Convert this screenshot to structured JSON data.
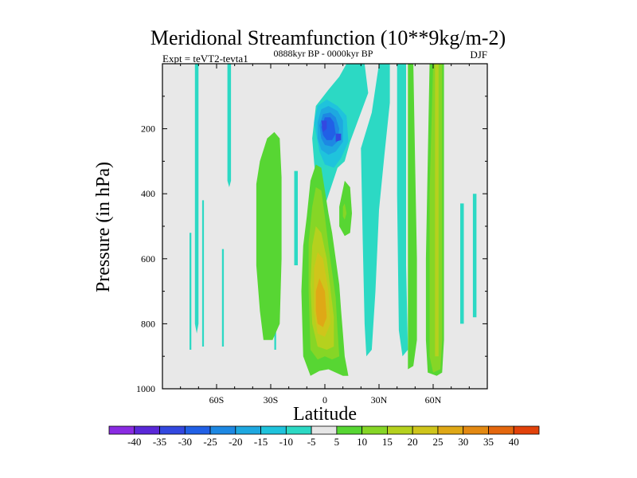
{
  "chart_data": {
    "type": "heatmap",
    "title": "Meridional Streamfunction (10**9kg/m-2)",
    "subtitle": "0888kyr BP - 0000kyr BP",
    "left_annotation": "Expt = teVT2-tevta1",
    "right_annotation": "DJF",
    "xlabel": "Latitude",
    "ylabel": "Pressure (in hPa)",
    "xlim": [
      -90,
      90
    ],
    "ylim": [
      0,
      1000
    ],
    "x_ticks": [
      {
        "value": -60,
        "label": "60S"
      },
      {
        "value": -30,
        "label": "30S"
      },
      {
        "value": 0,
        "label": "0"
      },
      {
        "value": 30,
        "label": "30N"
      },
      {
        "value": 60,
        "label": "60N"
      }
    ],
    "y_ticks": [
      {
        "value": 200,
        "label": "200"
      },
      {
        "value": 400,
        "label": "400"
      },
      {
        "value": 600,
        "label": "600"
      },
      {
        "value": 800,
        "label": "800"
      },
      {
        "value": 1000,
        "label": "1000"
      }
    ],
    "background_color": "#e8e8e8",
    "colorbar": {
      "levels": [
        -40,
        -35,
        -30,
        -25,
        -20,
        -15,
        -10,
        -5,
        5,
        10,
        15,
        20,
        25,
        30,
        35,
        40
      ],
      "labels": [
        "-40",
        "-35",
        "-30",
        "-25",
        "-20",
        "-15",
        "-10",
        "-5",
        "5",
        "10",
        "15",
        "20",
        "25",
        "30",
        "35",
        "40"
      ],
      "colors": [
        "#8a2be2",
        "#5a28d8",
        "#3348e0",
        "#2160e6",
        "#1d88e3",
        "#1ea8e0",
        "#1fc3dc",
        "#2cd9c4",
        "#e6e6e6",
        "#57d633",
        "#86d626",
        "#b5d11e",
        "#cfc51b",
        "#dfa816",
        "#e38912",
        "#e4670e",
        "#e2420a"
      ]
    },
    "contours": [
      {
        "level": -5,
        "points": [
          [
            -72,
            0
          ],
          [
            -70,
            0
          ],
          [
            -70,
            800
          ],
          [
            -71,
            830
          ],
          [
            -72,
            800
          ]
        ]
      },
      {
        "level": -5,
        "points": [
          [
            -75,
            520
          ],
          [
            -74,
            520
          ],
          [
            -74,
            880
          ],
          [
            -75,
            880
          ]
        ]
      },
      {
        "level": -5,
        "points": [
          [
            -68,
            420
          ],
          [
            -67,
            420
          ],
          [
            -67,
            870
          ],
          [
            -68,
            870
          ]
        ]
      },
      {
        "level": -5,
        "points": [
          [
            -57,
            570
          ],
          [
            -56,
            570
          ],
          [
            -56,
            870
          ],
          [
            -57,
            870
          ]
        ]
      },
      {
        "level": -5,
        "points": [
          [
            -54,
            0
          ],
          [
            -52,
            0
          ],
          [
            -52,
            360
          ],
          [
            -53,
            380
          ],
          [
            -54,
            360
          ]
        ]
      },
      {
        "level": -5,
        "points": [
          [
            -28,
            560
          ],
          [
            -27,
            560
          ],
          [
            -27,
            880
          ],
          [
            -28,
            880
          ]
        ]
      },
      {
        "level": -5,
        "points": [
          [
            -17,
            330
          ],
          [
            -15,
            330
          ],
          [
            -15,
            620
          ],
          [
            -17,
            620
          ]
        ]
      },
      {
        "level": -5,
        "points": [
          [
            -7,
            230
          ],
          [
            -5,
            130
          ],
          [
            2,
            80
          ],
          [
            8,
            40
          ],
          [
            12,
            0
          ],
          [
            22,
            0
          ],
          [
            24,
            90
          ],
          [
            18,
            180
          ],
          [
            14,
            240
          ],
          [
            11,
            300
          ],
          [
            7,
            320
          ],
          [
            4,
            370
          ],
          [
            1,
            420
          ],
          [
            0,
            440
          ],
          [
            -2,
            480
          ],
          [
            -4,
            430
          ],
          [
            -6,
            300
          ]
        ]
      },
      {
        "level": -5,
        "points": [
          [
            20,
            260
          ],
          [
            26,
            150
          ],
          [
            30,
            0
          ],
          [
            36,
            0
          ],
          [
            36,
            120
          ],
          [
            33,
            280
          ],
          [
            30,
            450
          ],
          [
            28,
            700
          ],
          [
            26,
            880
          ],
          [
            23,
            900
          ],
          [
            22,
            800
          ],
          [
            21,
            550
          ]
        ]
      },
      {
        "level": -5,
        "points": [
          [
            40,
            0
          ],
          [
            45,
            0
          ],
          [
            45,
            620
          ],
          [
            46,
            880
          ],
          [
            43,
            900
          ],
          [
            41,
            820
          ],
          [
            40,
            400
          ]
        ]
      },
      {
        "level": -5,
        "points": [
          [
            75,
            430
          ],
          [
            77,
            430
          ],
          [
            77,
            800
          ],
          [
            75,
            800
          ]
        ]
      },
      {
        "level": -5,
        "points": [
          [
            82,
            400
          ],
          [
            84,
            400
          ],
          [
            84,
            780
          ],
          [
            82,
            780
          ]
        ]
      },
      {
        "level": -10,
        "points": [
          [
            -6,
            180
          ],
          [
            -4,
            130
          ],
          [
            1,
            110
          ],
          [
            7,
            130
          ],
          [
            12,
            160
          ],
          [
            13,
            240
          ],
          [
            9,
            290
          ],
          [
            5,
            320
          ],
          [
            0,
            310
          ],
          [
            -3,
            270
          ]
        ]
      },
      {
        "level": -15,
        "points": [
          [
            -4,
            180
          ],
          [
            -2,
            140
          ],
          [
            2,
            130
          ],
          [
            7,
            145
          ],
          [
            10,
            175
          ],
          [
            10,
            240
          ],
          [
            6,
            270
          ],
          [
            2,
            280
          ],
          [
            -2,
            265
          ],
          [
            -4,
            230
          ]
        ]
      },
      {
        "level": -20,
        "points": [
          [
            -3,
            190
          ],
          [
            -1,
            155
          ],
          [
            3,
            150
          ],
          [
            6,
            165
          ],
          [
            8,
            200
          ],
          [
            7,
            240
          ],
          [
            4,
            255
          ],
          [
            0,
            250
          ],
          [
            -2,
            230
          ]
        ]
      },
      {
        "level": -25,
        "points": [
          [
            -2,
            195
          ],
          [
            0,
            165
          ],
          [
            3,
            165
          ],
          [
            5,
            180
          ],
          [
            6,
            215
          ],
          [
            4,
            235
          ],
          [
            1,
            235
          ],
          [
            -1,
            220
          ]
        ]
      },
      {
        "level": -30,
        "points": [
          [
            -2,
            175
          ],
          [
            1,
            175
          ],
          [
            1,
            200
          ],
          [
            -1,
            210
          ]
        ]
      },
      {
        "level": -30,
        "points": [
          [
            6,
            215
          ],
          [
            9,
            215
          ],
          [
            9,
            235
          ],
          [
            6,
            240
          ]
        ]
      },
      {
        "level": 5,
        "points": [
          [
            -38,
            370
          ],
          [
            -36,
            300
          ],
          [
            -32,
            230
          ],
          [
            -28,
            210
          ],
          [
            -25,
            230
          ],
          [
            -24,
            350
          ],
          [
            -24,
            600
          ],
          [
            -25,
            800
          ],
          [
            -29,
            850
          ],
          [
            -34,
            850
          ],
          [
            -36,
            760
          ],
          [
            -38,
            620
          ]
        ]
      },
      {
        "level": 5,
        "points": [
          [
            -10,
            470
          ],
          [
            -8,
            360
          ],
          [
            -5,
            310
          ],
          [
            -2,
            320
          ],
          [
            0,
            390
          ],
          [
            2,
            460
          ],
          [
            4,
            520
          ],
          [
            6,
            600
          ],
          [
            8,
            680
          ],
          [
            9,
            760
          ],
          [
            10,
            830
          ],
          [
            11,
            900
          ],
          [
            13,
            960
          ],
          [
            10,
            960
          ],
          [
            6,
            950
          ],
          [
            2,
            940
          ],
          [
            -3,
            945
          ],
          [
            -8,
            960
          ],
          [
            -12,
            900
          ],
          [
            -13,
            700
          ],
          [
            -12,
            560
          ]
        ]
      },
      {
        "level": 5,
        "points": [
          [
            8,
            440
          ],
          [
            11,
            360
          ],
          [
            14,
            380
          ],
          [
            15,
            460
          ],
          [
            14,
            520
          ],
          [
            11,
            530
          ],
          [
            8,
            500
          ]
        ]
      },
      {
        "level": 5,
        "points": [
          [
            46,
            0
          ],
          [
            49,
            0
          ],
          [
            50,
            300
          ],
          [
            51,
            600
          ],
          [
            51,
            850
          ],
          [
            49,
            930
          ],
          [
            46,
            940
          ],
          [
            46,
            600
          ]
        ]
      },
      {
        "level": 5,
        "points": [
          [
            58,
            0
          ],
          [
            66,
            0
          ],
          [
            66,
            300
          ],
          [
            66,
            600
          ],
          [
            66,
            850
          ],
          [
            65,
            950
          ],
          [
            62,
            960
          ],
          [
            57,
            950
          ],
          [
            56,
            850
          ],
          [
            56,
            600
          ],
          [
            57,
            300
          ]
        ]
      },
      {
        "level": 10,
        "points": [
          [
            -7,
            440
          ],
          [
            -5,
            380
          ],
          [
            -2,
            390
          ],
          [
            0,
            470
          ],
          [
            2,
            560
          ],
          [
            4,
            640
          ],
          [
            6,
            720
          ],
          [
            7,
            820
          ],
          [
            8,
            900
          ],
          [
            4,
            910
          ],
          [
            0,
            900
          ],
          [
            -4,
            910
          ],
          [
            -8,
            880
          ],
          [
            -9,
            700
          ],
          [
            -9,
            550
          ]
        ]
      },
      {
        "level": 10,
        "points": [
          [
            10,
            440
          ],
          [
            11,
            430
          ],
          [
            12,
            460
          ],
          [
            11,
            480
          ],
          [
            10,
            470
          ]
        ]
      },
      {
        "level": 10,
        "points": [
          [
            60,
            0
          ],
          [
            65,
            0
          ],
          [
            65,
            850
          ],
          [
            64,
            940
          ],
          [
            60,
            950
          ],
          [
            58,
            900
          ],
          [
            58,
            400
          ]
        ]
      },
      {
        "level": 15,
        "points": [
          [
            -7,
            560
          ],
          [
            -5,
            500
          ],
          [
            -2,
            520
          ],
          [
            1,
            600
          ],
          [
            3,
            690
          ],
          [
            5,
            780
          ],
          [
            5,
            870
          ],
          [
            1,
            880
          ],
          [
            -4,
            870
          ],
          [
            -7,
            800
          ],
          [
            -8,
            680
          ]
        ]
      },
      {
        "level": 15,
        "points": [
          [
            61,
            0
          ],
          [
            63,
            0
          ],
          [
            63,
            900
          ],
          [
            61,
            900
          ]
        ]
      },
      {
        "level": 20,
        "points": [
          [
            -6,
            630
          ],
          [
            -4,
            580
          ],
          [
            -1,
            600
          ],
          [
            2,
            700
          ],
          [
            3,
            800
          ],
          [
            0,
            840
          ],
          [
            -4,
            830
          ],
          [
            -6,
            760
          ]
        ]
      },
      {
        "level": 25,
        "points": [
          [
            -5,
            700
          ],
          [
            -3,
            660
          ],
          [
            0,
            700
          ],
          [
            1,
            780
          ],
          [
            -1,
            810
          ],
          [
            -4,
            800
          ],
          [
            -5,
            760
          ]
        ]
      }
    ]
  }
}
